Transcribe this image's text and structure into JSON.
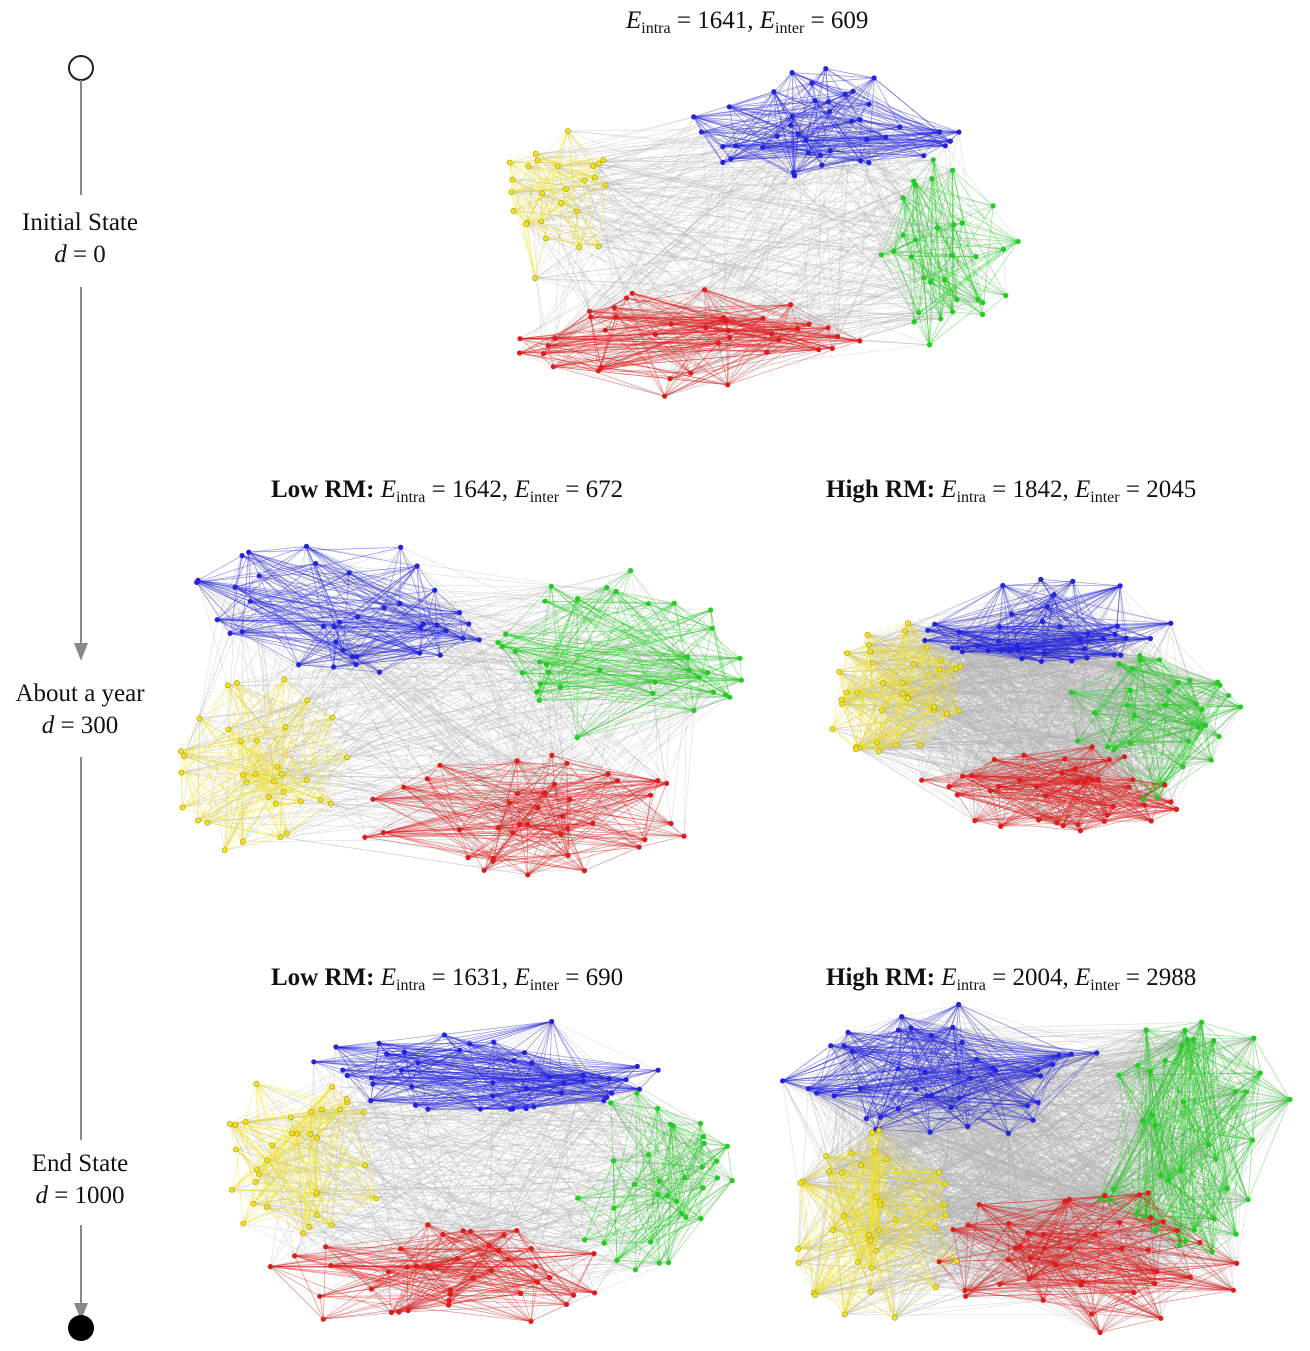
{
  "timeline": {
    "stages": [
      {
        "label": "Initial State",
        "d_expr": "= 0"
      },
      {
        "label": "About a year",
        "d_expr": "= 300"
      },
      {
        "label": "End State",
        "d_expr": "= 1000"
      }
    ],
    "d_symbol": "d"
  },
  "symbols": {
    "E": "E",
    "intra": "intra",
    "inter": "inter"
  },
  "panels": [
    {
      "id": "initial",
      "prefix": "",
      "e_intra": "= 1641,",
      "e_inter": "= 609"
    },
    {
      "id": "y1-low",
      "prefix": "Low RM:",
      "e_intra": "= 1642,",
      "e_inter": "= 672"
    },
    {
      "id": "y1-high",
      "prefix": "High RM:",
      "e_intra": "= 1842,",
      "e_inter": "= 2045"
    },
    {
      "id": "end-low",
      "prefix": "Low RM:",
      "e_intra": "= 1631,",
      "e_inter": "= 690"
    },
    {
      "id": "end-high",
      "prefix": "High RM:",
      "e_intra": "= 2004,",
      "e_inter": "= 2988"
    }
  ],
  "colors": {
    "blue": "#2323dd",
    "green": "#22cc22",
    "red": "#dd1d1d",
    "yellow": "#f2e21a",
    "gray": "#b4b4b4",
    "timeline": "#888888"
  }
}
